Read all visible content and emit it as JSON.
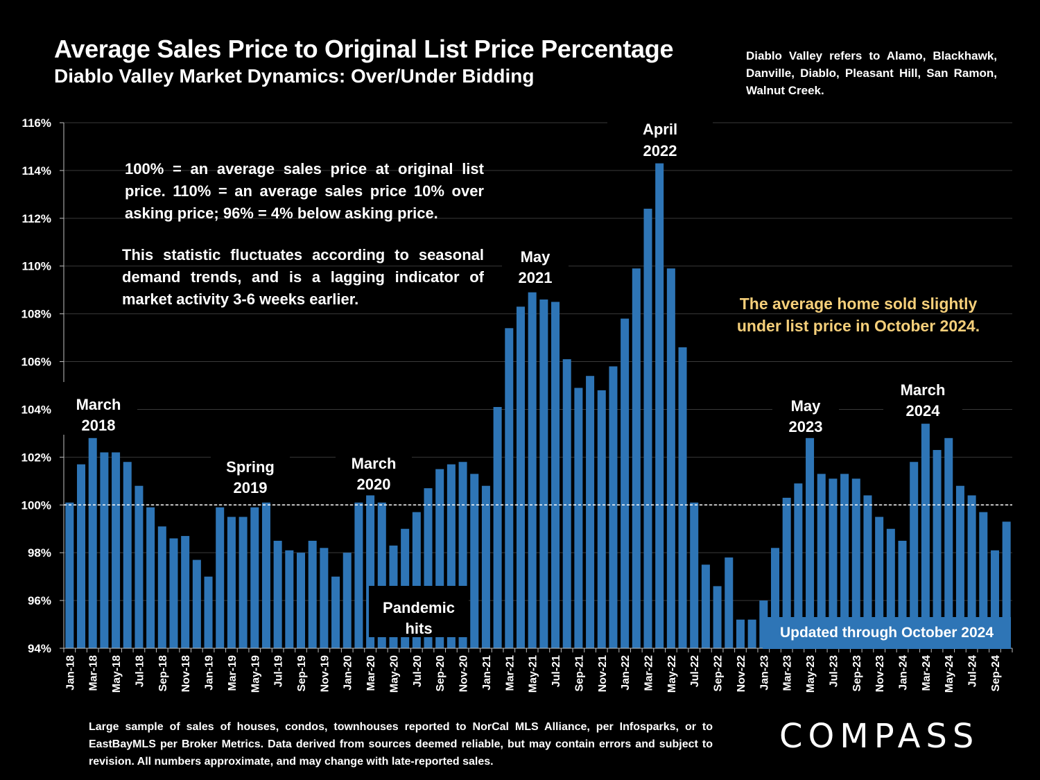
{
  "title": "Average Sales Price to Original List Price Percentage",
  "subtitle": "Diablo Valley Market Dynamics: Over/Under Bidding",
  "region_note": "Diablo Valley refers to Alamo, Blackhawk, Danville, Diablo, Pleasant Hill, San Ramon, Walnut Creek.",
  "explain_1": "100% = an average sales price at original list price. 110% = an average sales price 10% over asking price; 96% = 4% below asking price.",
  "explain_2": "This statistic fluctuates according to seasonal demand trends, and is a lagging indicator of market activity 3-6 weeks earlier.",
  "highlight_note": "The average home sold slightly under list price in October 2024.",
  "updated_label": "Updated through October 2024",
  "footnote": "Large sample of sales of houses, condos, townhouses reported to NorCal MLS Alliance, per Infosparks, or to EastBayMLS per Broker Metrics. Data derived from sources deemed reliable, but may contain errors and subject to revision. All numbers approximate, and may change with late-reported sales.",
  "logo": "COMPASS",
  "colors": {
    "bar": "#2e75b6",
    "background": "#000000",
    "highlight": "#f5cf7a",
    "text": "#ffffff"
  },
  "chart_data": {
    "type": "bar",
    "ylim": [
      94,
      116
    ],
    "yticks": [
      "94%",
      "96%",
      "98%",
      "100%",
      "102%",
      "104%",
      "106%",
      "108%",
      "110%",
      "112%",
      "114%",
      "116%"
    ],
    "reference_line": 100,
    "x_tick_labels": [
      "Jan-18",
      "Mar-18",
      "May-18",
      "Jul-18",
      "Sep-18",
      "Nov-18",
      "Jan-19",
      "Mar-19",
      "May-19",
      "Jul-19",
      "Sep-19",
      "Nov-19",
      "Jan-20",
      "Mar-20",
      "May-20",
      "Jul-20",
      "Sep-20",
      "Nov-20",
      "Jan-21",
      "Mar-21",
      "May-21",
      "Jul-21",
      "Sep-21",
      "Nov-21",
      "Jan-22",
      "Mar-22",
      "May-22",
      "Jul-22",
      "Sep-22",
      "Nov-22",
      "Jan-23",
      "Mar-23",
      "May-23",
      "Jul-23",
      "Sep-23",
      "Nov-23",
      "Jan-24",
      "Mar-24",
      "May-24",
      "Jul-24",
      "Sep-24"
    ],
    "values": [
      100.1,
      101.7,
      102.8,
      102.2,
      102.2,
      101.8,
      100.8,
      99.9,
      99.1,
      98.6,
      98.7,
      97.7,
      97.0,
      99.9,
      99.5,
      99.5,
      99.9,
      100.1,
      98.5,
      98.1,
      98.0,
      98.5,
      98.2,
      97.0,
      98.0,
      100.1,
      100.4,
      100.1,
      98.3,
      99.0,
      99.7,
      100.7,
      101.5,
      101.7,
      101.8,
      101.3,
      100.8,
      104.1,
      107.4,
      108.3,
      108.9,
      108.6,
      108.5,
      106.1,
      104.9,
      105.4,
      104.8,
      105.8,
      107.8,
      109.9,
      112.4,
      114.3,
      109.9,
      106.6,
      100.1,
      97.5,
      96.6,
      97.8,
      95.2,
      95.2,
      96.0,
      98.2,
      100.3,
      100.9,
      102.8,
      101.3,
      101.1,
      101.3,
      101.1,
      100.4,
      99.5,
      99.0,
      98.5,
      101.8,
      103.4,
      102.3,
      102.8,
      100.8,
      100.4,
      99.7,
      98.1,
      99.3
    ],
    "annotations": [
      {
        "line1": "March",
        "line2": "2018"
      },
      {
        "line1": "Spring",
        "line2": "2019"
      },
      {
        "line1": "March",
        "line2": "2020"
      },
      {
        "line1": "Pandemic",
        "line2": "hits"
      },
      {
        "line1": "May",
        "line2": "2021"
      },
      {
        "line1": "April",
        "line2": "2022"
      },
      {
        "line1": "May",
        "line2": "2023"
      },
      {
        "line1": "March",
        "line2": "2024"
      }
    ]
  }
}
